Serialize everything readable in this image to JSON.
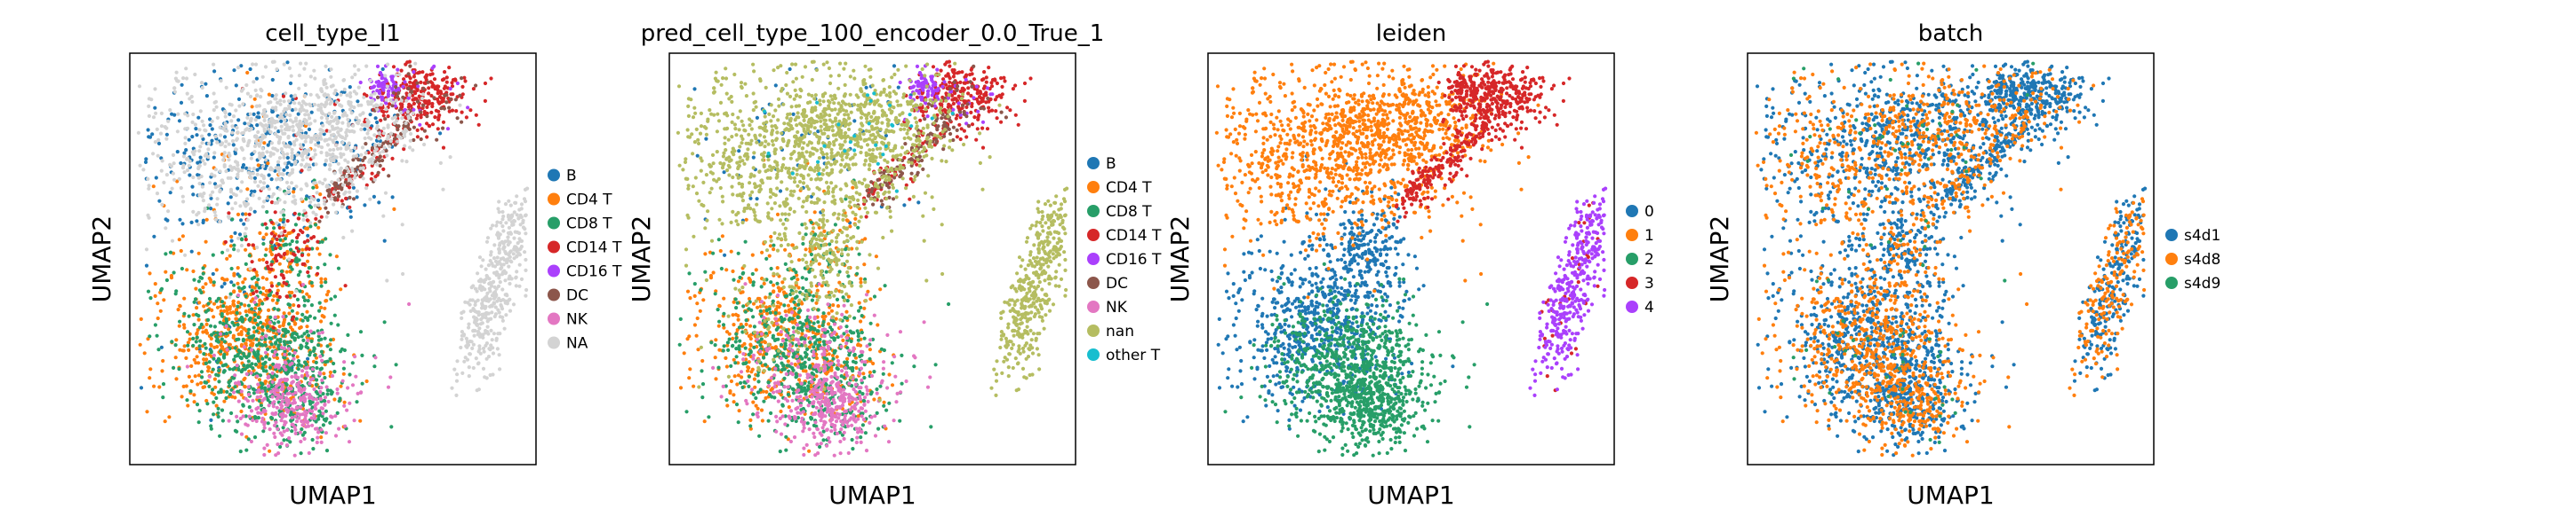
{
  "figure": {
    "background": "#ffffff"
  },
  "chart_data": [
    {
      "type": "scatter",
      "title": "cell_type_l1",
      "xlabel": "UMAP1",
      "ylabel": "UMAP2",
      "grid": false,
      "legend_position": "right",
      "series": [
        {
          "name": "B",
          "color": "#1f77b4"
        },
        {
          "name": "CD4 T",
          "color": "#ff7f0e"
        },
        {
          "name": "CD8 T",
          "color": "#279e68"
        },
        {
          "name": "CD14 T",
          "color": "#d62728"
        },
        {
          "name": "CD16 T",
          "color": "#aa40fc"
        },
        {
          "name": "DC",
          "color": "#8c564b"
        },
        {
          "name": "NK",
          "color": "#e377c2"
        },
        {
          "name": "NA",
          "color": "#d3d3d3"
        }
      ]
    },
    {
      "type": "scatter",
      "title": "pred_cell_type_100_encoder_0.0_True_1",
      "xlabel": "UMAP1",
      "ylabel": "UMAP2",
      "grid": false,
      "legend_position": "right",
      "series": [
        {
          "name": "B",
          "color": "#1f77b4"
        },
        {
          "name": "CD4 T",
          "color": "#ff7f0e"
        },
        {
          "name": "CD8 T",
          "color": "#279e68"
        },
        {
          "name": "CD14 T",
          "color": "#d62728"
        },
        {
          "name": "CD16 T",
          "color": "#aa40fc"
        },
        {
          "name": "DC",
          "color": "#8c564b"
        },
        {
          "name": "NK",
          "color": "#e377c2"
        },
        {
          "name": "nan",
          "color": "#b5bd61"
        },
        {
          "name": "other T",
          "color": "#17becf"
        }
      ]
    },
    {
      "type": "scatter",
      "title": "leiden",
      "xlabel": "UMAP1",
      "ylabel": "UMAP2",
      "grid": false,
      "legend_position": "right",
      "series": [
        {
          "name": "0",
          "color": "#1f77b4"
        },
        {
          "name": "1",
          "color": "#ff7f0e"
        },
        {
          "name": "2",
          "color": "#279e68"
        },
        {
          "name": "3",
          "color": "#d62728"
        },
        {
          "name": "4",
          "color": "#aa40fc"
        }
      ]
    },
    {
      "type": "scatter",
      "title": "batch",
      "xlabel": "UMAP1",
      "ylabel": "UMAP2",
      "grid": false,
      "legend_position": "right",
      "series": [
        {
          "name": "s4d1",
          "color": "#1f77b4"
        },
        {
          "name": "s4d8",
          "color": "#ff7f0e"
        },
        {
          "name": "s4d9",
          "color": "#279e68"
        }
      ]
    }
  ]
}
